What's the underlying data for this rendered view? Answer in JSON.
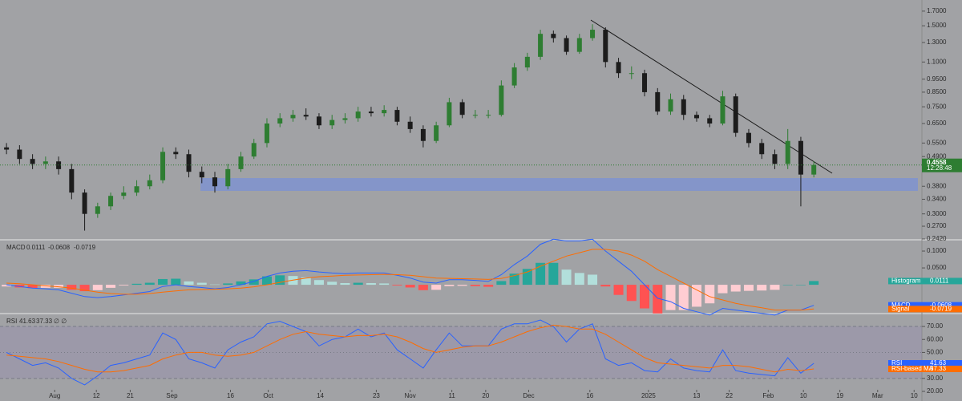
{
  "chart_data": [
    {
      "type": "candlestick",
      "open": [
        0.53,
        0.52,
        0.48,
        0.46,
        0.47,
        0.44,
        0.36,
        0.3,
        0.32,
        0.35,
        0.36,
        0.38,
        0.4,
        0.51,
        0.5,
        0.43,
        0.41,
        0.38,
        0.44,
        0.49,
        0.55,
        0.65,
        0.68,
        0.7,
        0.69,
        0.64,
        0.67,
        0.68,
        0.72,
        0.71,
        0.73,
        0.66,
        0.62,
        0.56,
        0.64,
        0.78,
        0.7,
        0.7,
        0.7,
        0.9,
        1.05,
        1.15,
        1.4,
        1.35,
        1.2,
        1.35,
        1.45,
        1.1,
        1.0,
        1.0,
        0.85,
        0.72,
        0.8,
        0.7,
        0.68,
        0.65,
        0.82,
        0.6,
        0.55,
        0.5,
        0.46,
        0.56,
        0.42
      ],
      "high": [
        0.55,
        0.54,
        0.5,
        0.49,
        0.49,
        0.46,
        0.37,
        0.33,
        0.36,
        0.38,
        0.4,
        0.42,
        0.53,
        0.53,
        0.52,
        0.45,
        0.43,
        0.46,
        0.51,
        0.57,
        0.68,
        0.71,
        0.73,
        0.74,
        0.71,
        0.7,
        0.71,
        0.75,
        0.75,
        0.76,
        0.75,
        0.69,
        0.64,
        0.66,
        0.81,
        0.8,
        0.73,
        0.73,
        0.94,
        1.09,
        1.19,
        1.45,
        1.44,
        1.38,
        1.4,
        1.52,
        1.48,
        1.14,
        1.06,
        1.03,
        0.88,
        0.84,
        0.83,
        0.72,
        0.7,
        0.86,
        0.84,
        0.62,
        0.57,
        0.52,
        0.62,
        0.58,
        0.47
      ],
      "low": [
        0.5,
        0.46,
        0.44,
        0.44,
        0.42,
        0.34,
        0.26,
        0.29,
        0.31,
        0.34,
        0.35,
        0.37,
        0.39,
        0.48,
        0.41,
        0.39,
        0.36,
        0.37,
        0.43,
        0.48,
        0.53,
        0.63,
        0.66,
        0.67,
        0.62,
        0.62,
        0.65,
        0.66,
        0.69,
        0.69,
        0.64,
        0.6,
        0.53,
        0.55,
        0.63,
        0.68,
        0.68,
        0.68,
        0.69,
        0.88,
        1.02,
        1.12,
        1.3,
        1.17,
        1.18,
        1.32,
        1.05,
        0.96,
        0.95,
        0.82,
        0.7,
        0.7,
        0.67,
        0.66,
        0.63,
        0.64,
        0.58,
        0.53,
        0.48,
        0.44,
        0.44,
        0.32,
        0.41
      ],
      "close": [
        0.52,
        0.48,
        0.46,
        0.47,
        0.44,
        0.36,
        0.3,
        0.32,
        0.35,
        0.36,
        0.38,
        0.4,
        0.51,
        0.5,
        0.43,
        0.41,
        0.38,
        0.44,
        0.49,
        0.55,
        0.65,
        0.68,
        0.7,
        0.69,
        0.64,
        0.67,
        0.68,
        0.72,
        0.71,
        0.73,
        0.66,
        0.62,
        0.56,
        0.64,
        0.78,
        0.7,
        0.7,
        0.7,
        0.9,
        1.05,
        1.15,
        1.4,
        1.35,
        1.2,
        1.35,
        1.45,
        1.1,
        1.0,
        1.0,
        0.85,
        0.72,
        0.8,
        0.7,
        0.68,
        0.65,
        0.82,
        0.6,
        0.55,
        0.5,
        0.46,
        0.56,
        0.42,
        0.4558
      ],
      "up_color": "#2e7d32",
      "down_color": "#1c1c1c",
      "log_scale": true,
      "ylim": [
        0.242,
        1.87
      ],
      "yticks": [
        {
          "value": 1.7,
          "label": "1.7000"
        },
        {
          "value": 1.5,
          "label": "1.5000"
        },
        {
          "value": 1.3,
          "label": "1.3000"
        },
        {
          "value": 1.1,
          "label": "1.1000"
        },
        {
          "value": 0.95,
          "label": "0.9500"
        },
        {
          "value": 0.85,
          "label": "0.8500"
        },
        {
          "value": 0.75,
          "label": "0.7500"
        },
        {
          "value": 0.65,
          "label": "0.6500"
        },
        {
          "value": 0.55,
          "label": "0.5500"
        },
        {
          "value": 0.49,
          "label": "0.4900"
        },
        {
          "value": 0.38,
          "label": "0.3800"
        },
        {
          "value": 0.34,
          "label": "0.3400"
        },
        {
          "value": 0.3,
          "label": "0.3000"
        },
        {
          "value": 0.27,
          "label": "0.2700"
        },
        {
          "value": 0.242,
          "label": "0.2420"
        }
      ],
      "countdown": "12:28:48"
    },
    {
      "type": "macd",
      "title": "MACD",
      "ylim": [
        -0.083,
        0.131
      ],
      "yticks": [
        {
          "value": 0.1,
          "label": "0.1000"
        },
        {
          "value": 0.05,
          "label": "0.0500"
        }
      ],
      "series": [
        {
          "name": "Histogram",
          "colors": [
            "#26a69a",
            "#b2dfdb",
            "#ffcdd2",
            "#ff5252"
          ],
          "values": [
            -0.005,
            -0.008,
            -0.01,
            -0.009,
            -0.009,
            -0.015,
            -0.019,
            -0.016,
            -0.009,
            -0.002,
            0.003,
            0.006,
            0.017,
            0.018,
            0.01,
            0.006,
            0.001,
            0.004,
            0.01,
            0.016,
            0.025,
            0.028,
            0.026,
            0.022,
            0.014,
            0.009,
            0.005,
            0.006,
            0.005,
            0.004,
            -0.002,
            -0.008,
            -0.016,
            -0.015,
            -0.004,
            -0.003,
            -0.004,
            -0.006,
            0.011,
            0.033,
            0.047,
            0.065,
            0.065,
            0.045,
            0.035,
            0.03,
            -0.005,
            -0.03,
            -0.048,
            -0.07,
            -0.085,
            -0.075,
            -0.075,
            -0.065,
            -0.055,
            -0.025,
            -0.02,
            -0.018,
            -0.017,
            -0.015,
            0.0,
            0.0,
            0.0111
          ]
        },
        {
          "name": "MACD",
          "color": "#2962ff",
          "values": [
            0.0,
            -0.005,
            -0.01,
            -0.012,
            -0.015,
            -0.025,
            -0.035,
            -0.038,
            -0.035,
            -0.03,
            -0.025,
            -0.02,
            -0.005,
            0.0,
            -0.005,
            -0.008,
            -0.012,
            -0.008,
            0.0,
            0.01,
            0.025,
            0.035,
            0.04,
            0.042,
            0.038,
            0.035,
            0.033,
            0.035,
            0.035,
            0.035,
            0.028,
            0.02,
            0.008,
            0.005,
            0.015,
            0.015,
            0.013,
            0.01,
            0.03,
            0.06,
            0.085,
            0.12,
            0.135,
            0.13,
            0.13,
            0.135,
            0.1,
            0.07,
            0.04,
            0.0,
            -0.04,
            -0.05,
            -0.07,
            -0.08,
            -0.09,
            -0.07,
            -0.075,
            -0.08,
            -0.085,
            -0.09,
            -0.075,
            -0.075,
            -0.0608
          ]
        },
        {
          "name": "Signal",
          "color": "#ff6d00",
          "values": [
            0.005,
            0.003,
            0.0,
            -0.003,
            -0.006,
            -0.01,
            -0.016,
            -0.022,
            -0.026,
            -0.028,
            -0.028,
            -0.026,
            -0.022,
            -0.018,
            -0.015,
            -0.014,
            -0.013,
            -0.012,
            -0.01,
            -0.006,
            0.0,
            0.007,
            0.014,
            0.02,
            0.024,
            0.026,
            0.028,
            0.029,
            0.03,
            0.031,
            0.03,
            0.028,
            0.024,
            0.02,
            0.019,
            0.018,
            0.017,
            0.016,
            0.019,
            0.027,
            0.038,
            0.055,
            0.07,
            0.085,
            0.095,
            0.105,
            0.105,
            0.1,
            0.088,
            0.07,
            0.045,
            0.025,
            0.005,
            -0.015,
            -0.035,
            -0.045,
            -0.055,
            -0.062,
            -0.068,
            -0.075,
            -0.075,
            -0.075,
            -0.0719
          ]
        }
      ]
    },
    {
      "type": "line",
      "title": "RSI",
      "header_extra": "∅ ∅",
      "ylim": [
        12.6,
        79.3
      ],
      "yticks": [
        {
          "value": 70,
          "label": "70.00"
        },
        {
          "value": 60,
          "label": "60.00"
        },
        {
          "value": 50,
          "label": "50.00"
        },
        {
          "value": 40,
          "label": "40.00"
        },
        {
          "value": 30,
          "label": "30.00"
        },
        {
          "value": 20,
          "label": "20.00"
        }
      ],
      "overbought": 70,
      "oversold": 30,
      "midline": 50,
      "series": [
        {
          "name": "RSI",
          "color": "#2962ff",
          "values": [
            50,
            45,
            40,
            42,
            38,
            30,
            25,
            32,
            40,
            42,
            45,
            48,
            65,
            60,
            45,
            42,
            38,
            52,
            58,
            62,
            72,
            74,
            70,
            66,
            55,
            60,
            62,
            68,
            62,
            65,
            52,
            45,
            38,
            52,
            65,
            55,
            55,
            55,
            68,
            72,
            72,
            75,
            70,
            58,
            68,
            72,
            45,
            40,
            42,
            36,
            35,
            45,
            38,
            36,
            35,
            52,
            36,
            34,
            33,
            32,
            46,
            34,
            41.63
          ]
        },
        {
          "name": "RSI-based MA",
          "color": "#ff6d00",
          "values": [
            48,
            47,
            46,
            45,
            43,
            40,
            37,
            35,
            35,
            36,
            38,
            40,
            45,
            48,
            50,
            50,
            48,
            47,
            48,
            50,
            55,
            60,
            64,
            66,
            64,
            63,
            62,
            63,
            63,
            64,
            62,
            58,
            53,
            50,
            52,
            54,
            55,
            55,
            58,
            62,
            66,
            69,
            71,
            70,
            68,
            68,
            64,
            58,
            52,
            46,
            42,
            41,
            40,
            39,
            38,
            40,
            40,
            39,
            37,
            35,
            37,
            36,
            37.33
          ]
        }
      ],
      "xlim": [
        -0.5,
        70.3
      ],
      "xticks": [
        {
          "value": 3.7,
          "label": "Aug"
        },
        {
          "value": 6.9,
          "label": "12"
        },
        {
          "value": 9.5,
          "label": "21"
        },
        {
          "value": 12.7,
          "label": "Sep"
        },
        {
          "value": 17.2,
          "label": "16"
        },
        {
          "value": 20.1,
          "label": "Oct"
        },
        {
          "value": 24.1,
          "label": "14"
        },
        {
          "value": 28.4,
          "label": "23"
        },
        {
          "value": 31.0,
          "label": "Nov"
        },
        {
          "value": 34.2,
          "label": "11"
        },
        {
          "value": 36.8,
          "label": "20"
        },
        {
          "value": 40.1,
          "label": "Dec"
        },
        {
          "value": 44.8,
          "label": "16"
        },
        {
          "value": 49.3,
          "label": "2025"
        },
        {
          "value": 53.0,
          "label": "13"
        },
        {
          "value": 55.5,
          "label": "22"
        },
        {
          "value": 58.5,
          "label": "Feb"
        },
        {
          "value": 61.2,
          "label": "10"
        },
        {
          "value": 64.0,
          "label": "19"
        },
        {
          "value": 66.9,
          "label": "Mar"
        },
        {
          "value": 69.7,
          "label": "10"
        }
      ]
    }
  ]
}
